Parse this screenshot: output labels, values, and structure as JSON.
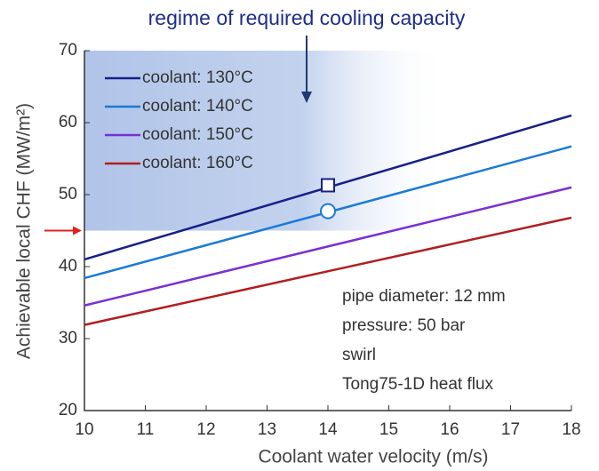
{
  "chart_data": {
    "type": "line",
    "title": "regime of required cooling capacity",
    "x_label": "Coolant water velocity (m/s)",
    "y_label": "Achievable local CHF (MW/m²)",
    "x": [
      10,
      18
    ],
    "series": [
      {
        "name": "coolant: 130°C",
        "color": "#16208a",
        "values": [
          41.0,
          61.0
        ]
      },
      {
        "name": "coolant: 140°C",
        "color": "#1a7ad8",
        "values": [
          38.4,
          56.7
        ]
      },
      {
        "name": "coolant: 150°C",
        "color": "#7a2ed4",
        "values": [
          34.6,
          51.0
        ]
      },
      {
        "name": "coolant: 160°C",
        "color": "#b21e1e",
        "values": [
          31.9,
          46.8
        ]
      }
    ],
    "required_chf": 45,
    "markers": [
      {
        "x": 14,
        "y": 51.3,
        "shape": "square",
        "color": "#16208a"
      },
      {
        "x": 14,
        "y": 47.7,
        "shape": "circle",
        "color": "#1a7ad8"
      }
    ],
    "notes": [
      "pipe diameter: 12 mm",
      "pressure: 50 bar",
      "swirl",
      "Tong75-1D heat flux"
    ],
    "xlim": [
      10,
      18
    ],
    "xticks": [
      10,
      11,
      12,
      13,
      14,
      15,
      16,
      17,
      18
    ],
    "ylim": [
      20,
      70
    ],
    "yticks": [
      20,
      30,
      40,
      50,
      60,
      70
    ],
    "grid": false,
    "legend": "upper left"
  }
}
